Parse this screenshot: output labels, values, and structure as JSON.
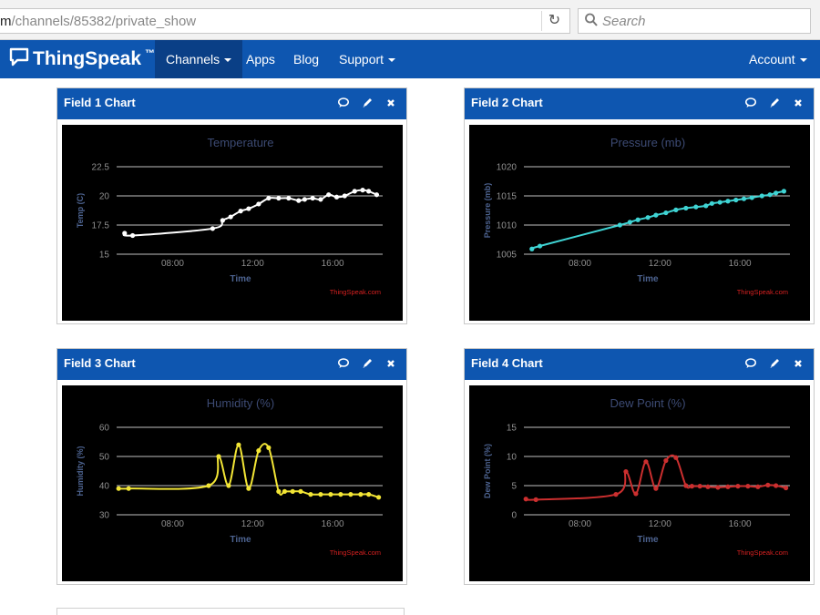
{
  "browser": {
    "url_prefix": "m",
    "url_path": "/channels/85382/private_show",
    "search_placeholder": "Search"
  },
  "nav": {
    "brand": "ThingSpeak",
    "brand_mark": "™",
    "items": [
      {
        "label": "Channels",
        "dropdown": true,
        "active": true
      },
      {
        "label": "Apps",
        "dropdown": false,
        "active": false
      },
      {
        "label": "Blog",
        "dropdown": false,
        "active": false
      },
      {
        "label": "Support",
        "dropdown": true,
        "active": false
      }
    ],
    "account": "Account",
    "bar_color": "#0e56b0",
    "active_color": "#0a3f86"
  },
  "panels": [
    {
      "title": "Field 1 Chart"
    },
    {
      "title": "Field 2 Chart"
    },
    {
      "title": "Field 3 Chart"
    },
    {
      "title": "Field 4 Chart"
    }
  ],
  "chart_data": [
    {
      "type": "line",
      "title": "Temperature",
      "xlabel": "Time",
      "ylabel": "Temp (C)",
      "credit": "ThingSpeak.com",
      "color": "#ffffff",
      "xlim": [
        5.2,
        18.5
      ],
      "xticks": [
        "08:00",
        "12:00",
        "16:00"
      ],
      "xtick_values": [
        8,
        12,
        16
      ],
      "ylim": [
        15,
        22.5
      ],
      "yticks": [
        15,
        17.5,
        20,
        22.5
      ],
      "ytick_labels": [
        "15",
        "17.5",
        "20",
        "22.5"
      ],
      "x": [
        5.6,
        6.0,
        10.0,
        10.5,
        10.9,
        11.4,
        11.8,
        12.3,
        12.8,
        13.3,
        13.8,
        14.3,
        14.6,
        15.0,
        15.4,
        15.8,
        16.2,
        16.6,
        17.1,
        17.5,
        17.8,
        18.2
      ],
      "y": [
        16.8,
        16.6,
        17.2,
        17.9,
        18.2,
        18.7,
        18.9,
        19.3,
        19.8,
        19.8,
        19.8,
        19.6,
        19.7,
        19.8,
        19.7,
        20.1,
        19.9,
        20.0,
        20.4,
        20.5,
        20.4,
        20.1
      ]
    },
    {
      "type": "line",
      "title": "Pressure (mb)",
      "xlabel": "Time",
      "ylabel": "Pressure (mb)",
      "credit": "ThingSpeak.com",
      "color": "#3fd4d4",
      "xlim": [
        5.2,
        18.5
      ],
      "xticks": [
        "08:00",
        "12:00",
        "16:00"
      ],
      "xtick_values": [
        8,
        12,
        16
      ],
      "ylim": [
        1005,
        1020
      ],
      "yticks": [
        1005,
        1010,
        1015,
        1020
      ],
      "ytick_labels": [
        "1005",
        "1010",
        "1015",
        "1020"
      ],
      "x": [
        5.6,
        6.0,
        10.0,
        10.5,
        10.9,
        11.4,
        11.8,
        12.3,
        12.8,
        13.3,
        13.8,
        14.3,
        14.6,
        15.0,
        15.4,
        15.8,
        16.2,
        16.6,
        17.1,
        17.5,
        17.8,
        18.2
      ],
      "y": [
        1005.9,
        1006.4,
        1010.0,
        1010.5,
        1010.9,
        1011.3,
        1011.7,
        1012.1,
        1012.6,
        1012.9,
        1013.1,
        1013.3,
        1013.7,
        1013.9,
        1014.1,
        1014.3,
        1014.5,
        1014.7,
        1015.0,
        1015.2,
        1015.5,
        1015.8
      ]
    },
    {
      "type": "line",
      "title": "Humidity (%)",
      "xlabel": "Time",
      "ylabel": "Humidity (%)",
      "credit": "ThingSpeak.com",
      "color": "#f2e535",
      "xlim": [
        5.2,
        18.5
      ],
      "xticks": [
        "08:00",
        "12:00",
        "16:00"
      ],
      "xtick_values": [
        8,
        12,
        16
      ],
      "ylim": [
        30,
        60
      ],
      "yticks": [
        30,
        40,
        50,
        60
      ],
      "ytick_labels": [
        "30",
        "40",
        "50",
        "60"
      ],
      "x": [
        5.3,
        5.8,
        9.8,
        10.3,
        10.8,
        11.3,
        11.8,
        12.3,
        12.8,
        13.3,
        13.6,
        14.0,
        14.4,
        14.9,
        15.4,
        15.9,
        16.4,
        16.9,
        17.4,
        17.8,
        18.3
      ],
      "y": [
        39,
        39,
        40,
        50,
        40,
        54,
        39,
        52,
        53,
        38,
        38,
        38,
        38,
        37,
        37,
        37,
        37,
        37,
        37,
        37,
        36
      ]
    },
    {
      "type": "line",
      "title": "Dew Point (%)",
      "xlabel": "Time",
      "ylabel": "Dew Point (%)",
      "credit": "ThingSpeak.com",
      "color": "#cc2f2f",
      "xlim": [
        5.2,
        18.5
      ],
      "xticks": [
        "08:00",
        "12:00",
        "16:00"
      ],
      "xtick_values": [
        8,
        12,
        16
      ],
      "ylim": [
        0,
        15
      ],
      "yticks": [
        0,
        5,
        10,
        15
      ],
      "ytick_labels": [
        "0",
        "5",
        "10",
        "15"
      ],
      "x": [
        5.3,
        5.8,
        9.8,
        10.3,
        10.8,
        11.3,
        11.8,
        12.3,
        12.8,
        13.3,
        13.6,
        14.0,
        14.4,
        14.9,
        15.4,
        15.9,
        16.4,
        16.9,
        17.4,
        17.8,
        18.3
      ],
      "y": [
        2.7,
        2.6,
        3.5,
        7.4,
        3.6,
        9.1,
        4.5,
        9.3,
        9.8,
        5.0,
        4.9,
        4.9,
        4.8,
        4.7,
        4.8,
        4.9,
        4.9,
        4.8,
        5.1,
        5.0,
        4.6
      ]
    }
  ]
}
